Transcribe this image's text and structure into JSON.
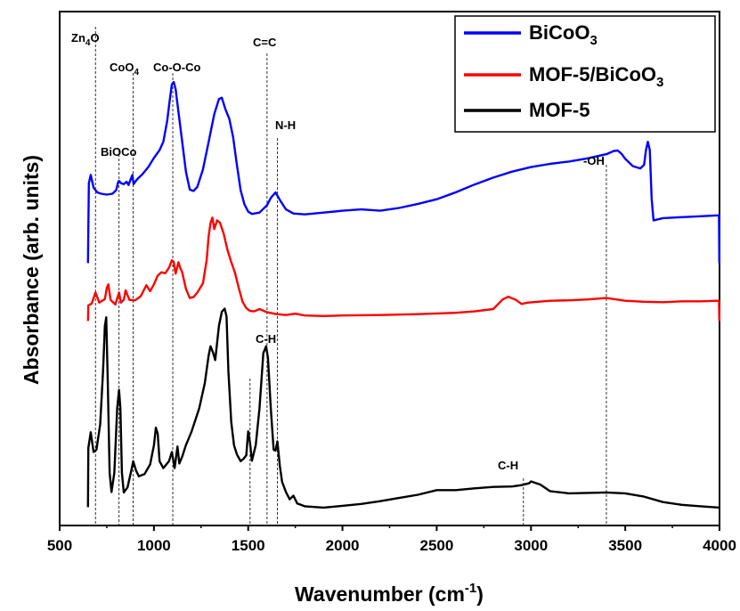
{
  "chart_data": {
    "type": "line",
    "xlabel": "Wavenumber (cm",
    "xlabel_sup": "-1",
    "xlabel_end": ")",
    "ylabel": "Absorbance (arb. units)",
    "xlim": [
      500,
      4000
    ],
    "ylim": [
      0,
      100
    ],
    "x_ticks": [
      500,
      1000,
      1500,
      2000,
      2500,
      3000,
      3500,
      4000
    ],
    "legend_position": "top-right",
    "grid": false,
    "series": [
      {
        "name": "BiCoO",
        "name_sub": "3",
        "color": "#0000ff",
        "points": [
          [
            650,
            53.6
          ],
          [
            652,
            61
          ],
          [
            655,
            71
          ],
          [
            665,
            72.8
          ],
          [
            680,
            70
          ],
          [
            700,
            69
          ],
          [
            720,
            68.7
          ],
          [
            750,
            68.5
          ],
          [
            780,
            68.7
          ],
          [
            800,
            69.5
          ],
          [
            810,
            71.2
          ],
          [
            815,
            71.5
          ],
          [
            825,
            71
          ],
          [
            840,
            70.8
          ],
          [
            855,
            71.3
          ],
          [
            865,
            70.6
          ],
          [
            880,
            72.2
          ],
          [
            886,
            72.8
          ],
          [
            892,
            70.8
          ],
          [
            910,
            71.8
          ],
          [
            940,
            73
          ],
          [
            970,
            74.5
          ],
          [
            1000,
            76.5
          ],
          [
            1030,
            78.2
          ],
          [
            1050,
            80
          ],
          [
            1070,
            84.5
          ],
          [
            1085,
            89.5
          ],
          [
            1095,
            92.5
          ],
          [
            1105,
            93
          ],
          [
            1115,
            91.5
          ],
          [
            1130,
            86.5
          ],
          [
            1150,
            80
          ],
          [
            1170,
            73.5
          ],
          [
            1190,
            69.6
          ],
          [
            1210,
            69.3
          ],
          [
            1230,
            70.2
          ],
          [
            1260,
            74
          ],
          [
            1290,
            80
          ],
          [
            1320,
            86
          ],
          [
            1345,
            89.3
          ],
          [
            1360,
            89.6
          ],
          [
            1380,
            87
          ],
          [
            1400,
            85
          ],
          [
            1420,
            81
          ],
          [
            1440,
            75
          ],
          [
            1460,
            69.5
          ],
          [
            1480,
            66.4
          ],
          [
            1500,
            64.8
          ],
          [
            1520,
            64.3
          ],
          [
            1560,
            64.6
          ],
          [
            1600,
            66.2
          ],
          [
            1620,
            67.8
          ],
          [
            1645,
            69
          ],
          [
            1670,
            67.2
          ],
          [
            1700,
            65.3
          ],
          [
            1740,
            64.4
          ],
          [
            1800,
            64.2
          ],
          [
            1900,
            64.6
          ],
          [
            2000,
            65
          ],
          [
            2100,
            65.3
          ],
          [
            2200,
            65
          ],
          [
            2300,
            65.6
          ],
          [
            2400,
            66.5
          ],
          [
            2500,
            67.5
          ],
          [
            2600,
            69
          ],
          [
            2700,
            70.7
          ],
          [
            2800,
            72.2
          ],
          [
            2900,
            73.5
          ],
          [
            3000,
            74.5
          ],
          [
            3100,
            75.2
          ],
          [
            3200,
            75.7
          ],
          [
            3300,
            76.4
          ],
          [
            3400,
            77.3
          ],
          [
            3440,
            78
          ],
          [
            3460,
            78.1
          ],
          [
            3480,
            77.4
          ],
          [
            3500,
            76.3
          ],
          [
            3540,
            74.7
          ],
          [
            3580,
            74.2
          ],
          [
            3600,
            75
          ],
          [
            3610,
            78.2
          ],
          [
            3620,
            80
          ],
          [
            3630,
            78.2
          ],
          [
            3640,
            67.6
          ],
          [
            3650,
            62.9
          ],
          [
            3700,
            63.4
          ],
          [
            3800,
            63.6
          ],
          [
            3900,
            63.8
          ],
          [
            3990,
            64
          ],
          [
            3997,
            64
          ],
          [
            3999,
            53.6
          ]
        ]
      },
      {
        "name": "MOF-5/BiCoO",
        "name_sub": "3",
        "color": "#ff0000",
        "points": [
          [
            650,
            41
          ],
          [
            652,
            44.4
          ],
          [
            670,
            44.8
          ],
          [
            690,
            47.2
          ],
          [
            710,
            45
          ],
          [
            740,
            45.8
          ],
          [
            750,
            48.2
          ],
          [
            758,
            49
          ],
          [
            770,
            45.6
          ],
          [
            795,
            44.6
          ],
          [
            815,
            47.2
          ],
          [
            825,
            45
          ],
          [
            840,
            45.6
          ],
          [
            850,
            47.7
          ],
          [
            870,
            45.6
          ],
          [
            900,
            45.5
          ],
          [
            930,
            46.4
          ],
          [
            960,
            48.8
          ],
          [
            980,
            47.5
          ],
          [
            1000,
            49
          ],
          [
            1020,
            50.9
          ],
          [
            1040,
            51.6
          ],
          [
            1060,
            51.4
          ],
          [
            1080,
            52.6
          ],
          [
            1095,
            54.2
          ],
          [
            1105,
            53.9
          ],
          [
            1115,
            51.3
          ],
          [
            1130,
            53.8
          ],
          [
            1140,
            52.5
          ],
          [
            1150,
            51.6
          ],
          [
            1170,
            48
          ],
          [
            1190,
            46
          ],
          [
            1210,
            46.2
          ],
          [
            1230,
            47.2
          ],
          [
            1260,
            49.2
          ],
          [
            1280,
            54.3
          ],
          [
            1290,
            59.5
          ],
          [
            1300,
            62.3
          ],
          [
            1310,
            63.5
          ],
          [
            1320,
            61
          ],
          [
            1335,
            62.9
          ],
          [
            1350,
            62.4
          ],
          [
            1370,
            60
          ],
          [
            1390,
            56.5
          ],
          [
            1410,
            53.8
          ],
          [
            1430,
            51.5
          ],
          [
            1450,
            48.2
          ],
          [
            1470,
            45.2
          ],
          [
            1490,
            43.8
          ],
          [
            1510,
            43.2
          ],
          [
            1530,
            43.1
          ],
          [
            1560,
            43.6
          ],
          [
            1600,
            42.9
          ],
          [
            1650,
            42.5
          ],
          [
            1700,
            42.3
          ],
          [
            1750,
            42.6
          ],
          [
            1800,
            42.2
          ],
          [
            1900,
            42.1
          ],
          [
            2000,
            42.2
          ],
          [
            2200,
            42.3
          ],
          [
            2400,
            42.5
          ],
          [
            2600,
            42.8
          ],
          [
            2700,
            43.1
          ],
          [
            2800,
            43.6
          ],
          [
            2850,
            45.7
          ],
          [
            2880,
            46.3
          ],
          [
            2920,
            45.6
          ],
          [
            2950,
            44.7
          ],
          [
            2980,
            45
          ],
          [
            3100,
            45.4
          ],
          [
            3200,
            45.5
          ],
          [
            3300,
            45.7
          ],
          [
            3400,
            46
          ],
          [
            3500,
            45.4
          ],
          [
            3600,
            45.2
          ],
          [
            3700,
            45.1
          ],
          [
            3800,
            45.3
          ],
          [
            3900,
            45.3
          ],
          [
            3990,
            45.4
          ],
          [
            3997,
            45.4
          ],
          [
            3999,
            41
          ]
        ]
      },
      {
        "name": "MOF-5",
        "color": "#000000",
        "points": [
          [
            650,
            0.5
          ],
          [
            652,
            13.4
          ],
          [
            665,
            16.8
          ],
          [
            680,
            12.5
          ],
          [
            695,
            13
          ],
          [
            715,
            18.5
          ],
          [
            730,
            30
          ],
          [
            740,
            40
          ],
          [
            747,
            41.8
          ],
          [
            755,
            28
          ],
          [
            765,
            8
          ],
          [
            775,
            3.8
          ],
          [
            790,
            8
          ],
          [
            805,
            22
          ],
          [
            815,
            26
          ],
          [
            822,
            22
          ],
          [
            830,
            8
          ],
          [
            840,
            3.7
          ],
          [
            860,
            4.8
          ],
          [
            880,
            8.5
          ],
          [
            890,
            10.5
          ],
          [
            905,
            8.5
          ],
          [
            920,
            7.2
          ],
          [
            950,
            7.7
          ],
          [
            980,
            9.8
          ],
          [
            1000,
            14
          ],
          [
            1010,
            17.8
          ],
          [
            1020,
            16.5
          ],
          [
            1030,
            10.5
          ],
          [
            1050,
            9
          ],
          [
            1080,
            10.5
          ],
          [
            1095,
            12.5
          ],
          [
            1110,
            9
          ],
          [
            1125,
            13.7
          ],
          [
            1135,
            10
          ],
          [
            1150,
            11.5
          ],
          [
            1170,
            14
          ],
          [
            1200,
            17
          ],
          [
            1240,
            22
          ],
          [
            1270,
            27.5
          ],
          [
            1290,
            33.5
          ],
          [
            1300,
            35.5
          ],
          [
            1315,
            34
          ],
          [
            1325,
            32.5
          ],
          [
            1345,
            40
          ],
          [
            1360,
            43
          ],
          [
            1375,
            43.7
          ],
          [
            1385,
            42
          ],
          [
            1395,
            30
          ],
          [
            1410,
            19
          ],
          [
            1425,
            14
          ],
          [
            1440,
            12
          ],
          [
            1460,
            10.5
          ],
          [
            1475,
            11
          ],
          [
            1490,
            11.8
          ],
          [
            1500,
            17
          ],
          [
            1510,
            14.5
          ],
          [
            1520,
            10.6
          ],
          [
            1540,
            14
          ],
          [
            1560,
            22
          ],
          [
            1580,
            34
          ],
          [
            1595,
            35.5
          ],
          [
            1605,
            33
          ],
          [
            1620,
            22
          ],
          [
            1635,
            13
          ],
          [
            1645,
            12.8
          ],
          [
            1655,
            14.8
          ],
          [
            1668,
            9.4
          ],
          [
            1680,
            6
          ],
          [
            1700,
            3.8
          ],
          [
            1720,
            2.2
          ],
          [
            1740,
            3
          ],
          [
            1760,
            1.3
          ],
          [
            1800,
            0.7
          ],
          [
            1900,
            0.4
          ],
          [
            2000,
            0.8
          ],
          [
            2100,
            1.2
          ],
          [
            2200,
            1.8
          ],
          [
            2300,
            2.5
          ],
          [
            2400,
            3.2
          ],
          [
            2500,
            4.2
          ],
          [
            2600,
            4.2
          ],
          [
            2700,
            4.6
          ],
          [
            2800,
            4.9
          ],
          [
            2900,
            5
          ],
          [
            2950,
            5.3
          ],
          [
            2990,
            5.7
          ],
          [
            3000,
            6.1
          ],
          [
            3050,
            5.4
          ],
          [
            3100,
            4
          ],
          [
            3200,
            3.5
          ],
          [
            3300,
            3.6
          ],
          [
            3400,
            3.7
          ],
          [
            3500,
            3.5
          ],
          [
            3600,
            2.8
          ],
          [
            3700,
            1.6
          ],
          [
            3800,
            1
          ],
          [
            3900,
            0.7
          ],
          [
            4000,
            0.4
          ]
        ]
      }
    ],
    "annotations": [
      {
        "text": "Zn",
        "sub": "4",
        "tail": "O",
        "x": 690
      },
      {
        "text": "CoO",
        "sub": "4",
        "tail": "",
        "x": 890
      },
      {
        "text": "Co-O-Co",
        "sub": "",
        "tail": "",
        "x": 1100
      },
      {
        "text": "BiOCo",
        "sub": "",
        "tail": "",
        "x": 815
      },
      {
        "text": "C=C",
        "sub": "",
        "tail": "",
        "x": 1600
      },
      {
        "text": "N-H",
        "sub": "",
        "tail": "",
        "x": 1655
      },
      {
        "text": "-OH",
        "sub": "",
        "tail": "",
        "x": 3400
      },
      {
        "text": "C-H",
        "sub": "",
        "tail": "",
        "x": 1510
      },
      {
        "text": "C-H",
        "sub": "",
        "tail": "",
        "x": 2960
      }
    ]
  }
}
